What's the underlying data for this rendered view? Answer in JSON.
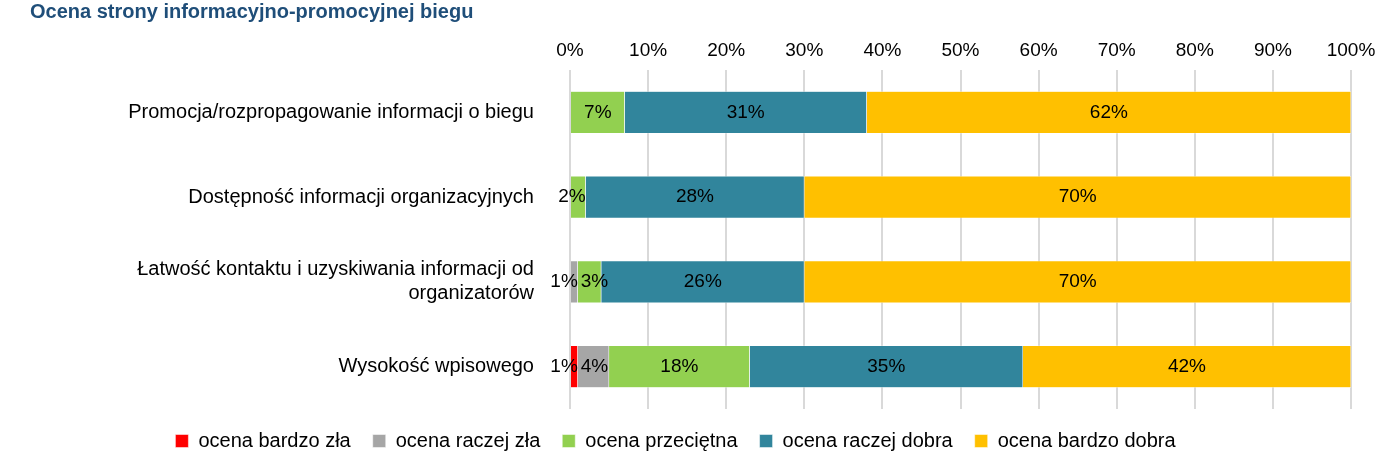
{
  "chart_data": {
    "type": "bar",
    "orientation": "horizontal",
    "stacked": true,
    "title": "Ocena strony informacyjno-promocyjnej biegu",
    "categories": [
      "Promocja/rozpropagowanie informacji o biegu",
      "Dostępność informacji organizacyjnych",
      "Łatwość kontaktu i uzyskiwania informacji od organizatorów",
      "Wysokość wpisowego"
    ],
    "series": [
      {
        "name": "ocena bardzo zła",
        "color": "#ff0000",
        "values": [
          0,
          0,
          0,
          1
        ],
        "value_labels": [
          null,
          null,
          null,
          "1%"
        ]
      },
      {
        "name": "ocena raczej zła",
        "color": "#a6a6a6",
        "values": [
          0,
          0,
          1,
          4
        ],
        "value_labels": [
          null,
          null,
          "1%",
          "4%"
        ]
      },
      {
        "name": "ocena przeciętna",
        "color": "#92d050",
        "values": [
          7,
          2,
          3,
          18
        ],
        "value_labels": [
          "7%",
          "2%",
          "3%",
          "18%"
        ]
      },
      {
        "name": "ocena raczej dobra",
        "color": "#31859c",
        "values": [
          31,
          28,
          26,
          35
        ],
        "value_labels": [
          "31%",
          "28%",
          "26%",
          "35%"
        ]
      },
      {
        "name": "ocena bardzo dobra",
        "color": "#ffc000",
        "values": [
          62,
          70,
          70,
          42
        ],
        "value_labels": [
          "62%",
          "70%",
          "70%",
          "42%"
        ]
      }
    ],
    "xlim": [
      0,
      100
    ],
    "xticks": [
      {
        "value": 0,
        "label": "0%"
      },
      {
        "value": 10,
        "label": "10%"
      },
      {
        "value": 20,
        "label": "20%"
      },
      {
        "value": 30,
        "label": "30%"
      },
      {
        "value": 40,
        "label": "40%"
      },
      {
        "value": 50,
        "label": "50%"
      },
      {
        "value": 60,
        "label": "60%"
      },
      {
        "value": 70,
        "label": "70%"
      },
      {
        "value": 80,
        "label": "80%"
      },
      {
        "value": 90,
        "label": "90%"
      },
      {
        "value": 100,
        "label": "100%"
      }
    ],
    "grid": "x",
    "legend": "bottom"
  }
}
